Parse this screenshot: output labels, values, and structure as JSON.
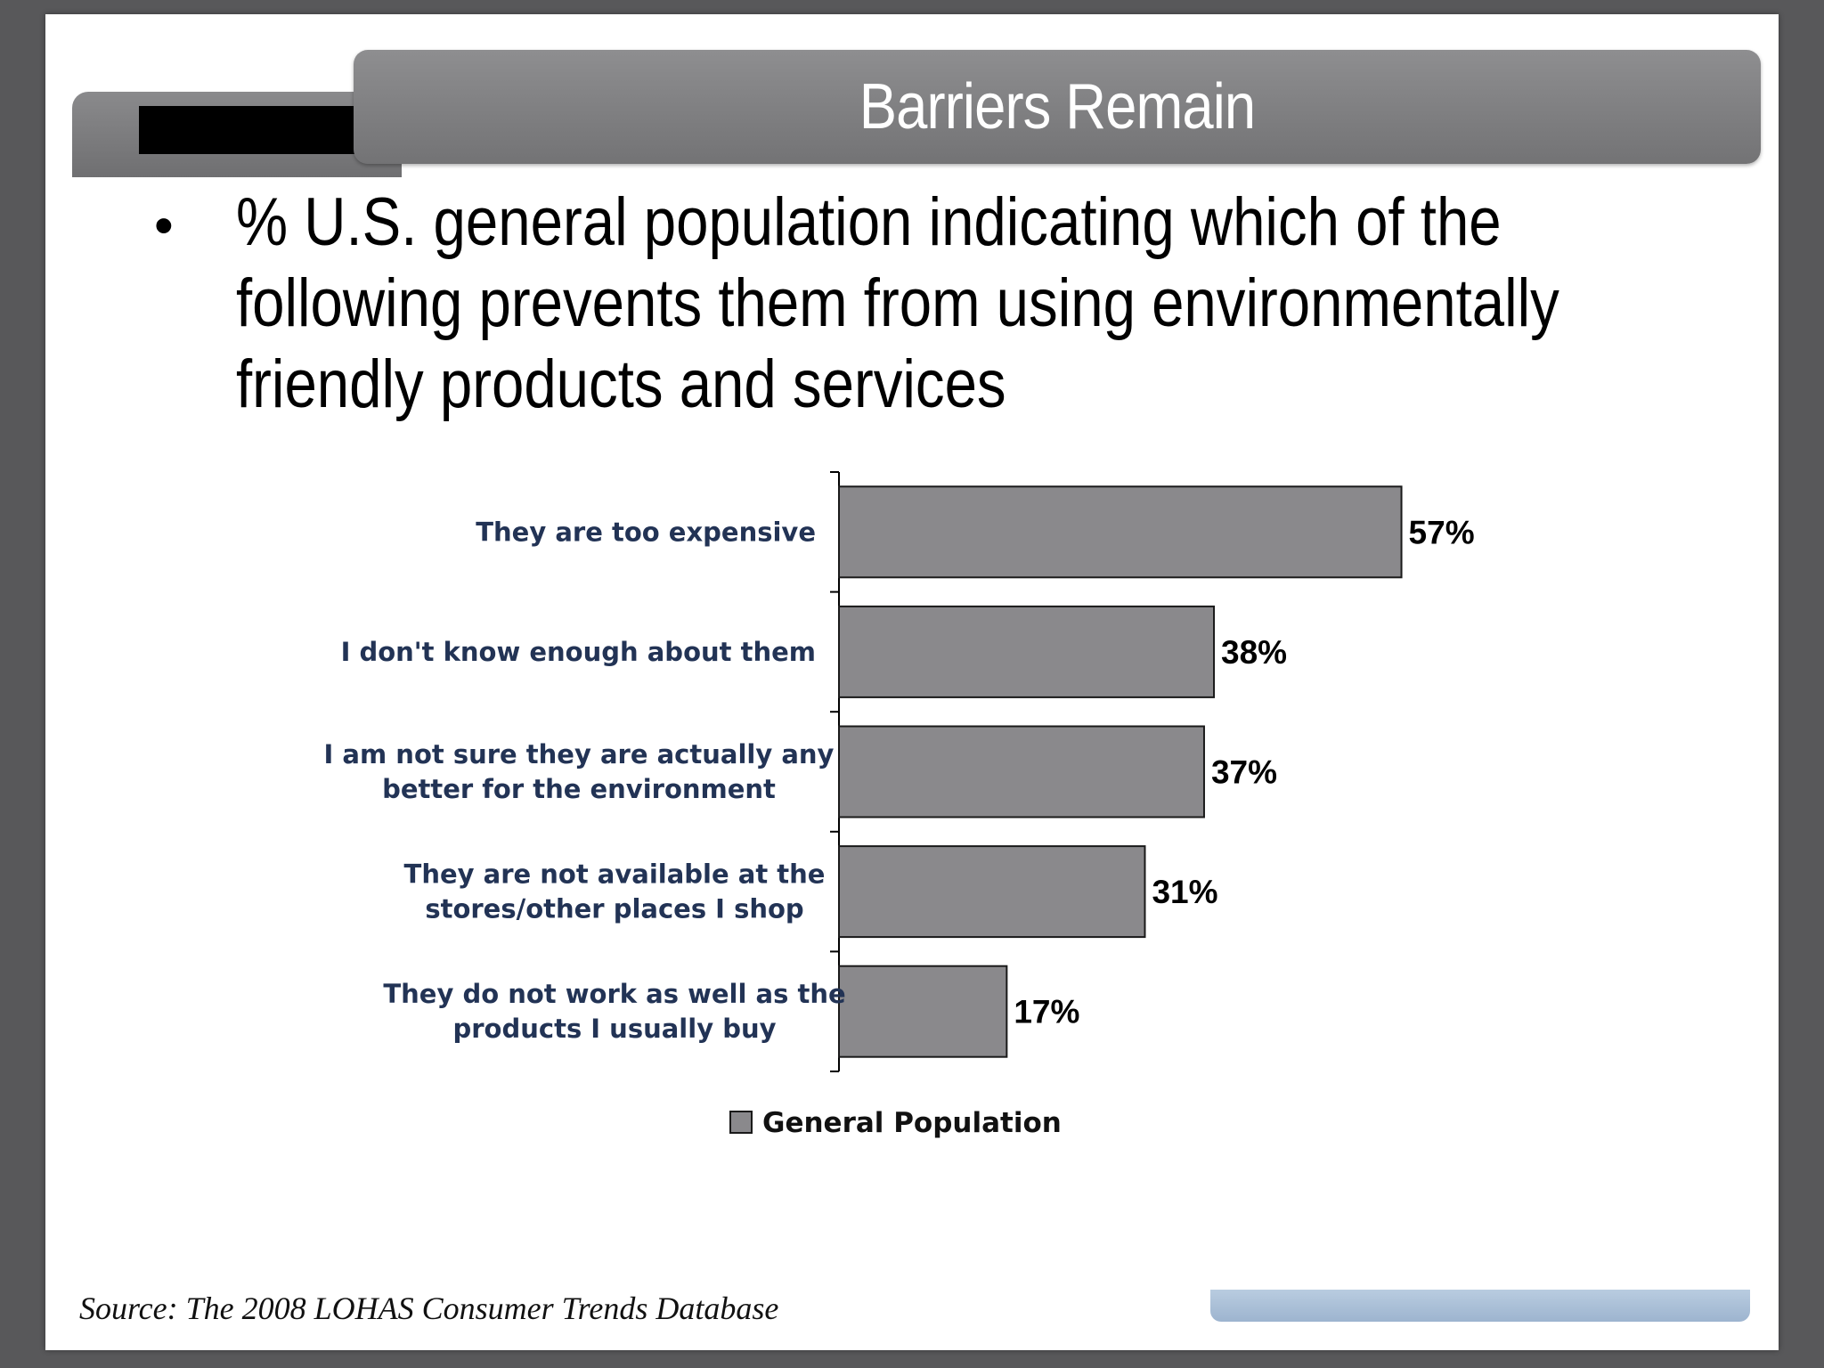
{
  "slide": {
    "title": "Barriers Remain",
    "bullet": "% U.S. general population indicating which of the following prevents them from using environmentally friendly products and services",
    "bullet_symbol": "•",
    "source": "Source: The 2008 LOHAS Consumer Trends Database"
  },
  "colors": {
    "bar_fill": "#8a898c",
    "bar_stroke": "#1a1a1a",
    "title_bar": "#808082",
    "category_text": "#223355",
    "footer_accent": "#a9bfd8"
  },
  "chart_data": {
    "type": "bar",
    "orientation": "horizontal",
    "categories": [
      [
        "They are too expensive"
      ],
      [
        "I don't know enough about them"
      ],
      [
        "I am not sure they are actually any",
        "better for the environment"
      ],
      [
        "They are not available at the",
        "stores/other places I shop"
      ],
      [
        "They do not work as well as the",
        "products I usually buy"
      ]
    ],
    "series": [
      {
        "name": "General Population",
        "values": [
          57,
          38,
          37,
          31,
          17
        ]
      }
    ],
    "data_labels": [
      "57%",
      "38%",
      "37%",
      "31%",
      "17%"
    ],
    "xlim": [
      0,
      70
    ],
    "legend_position": "bottom",
    "grid": false
  }
}
